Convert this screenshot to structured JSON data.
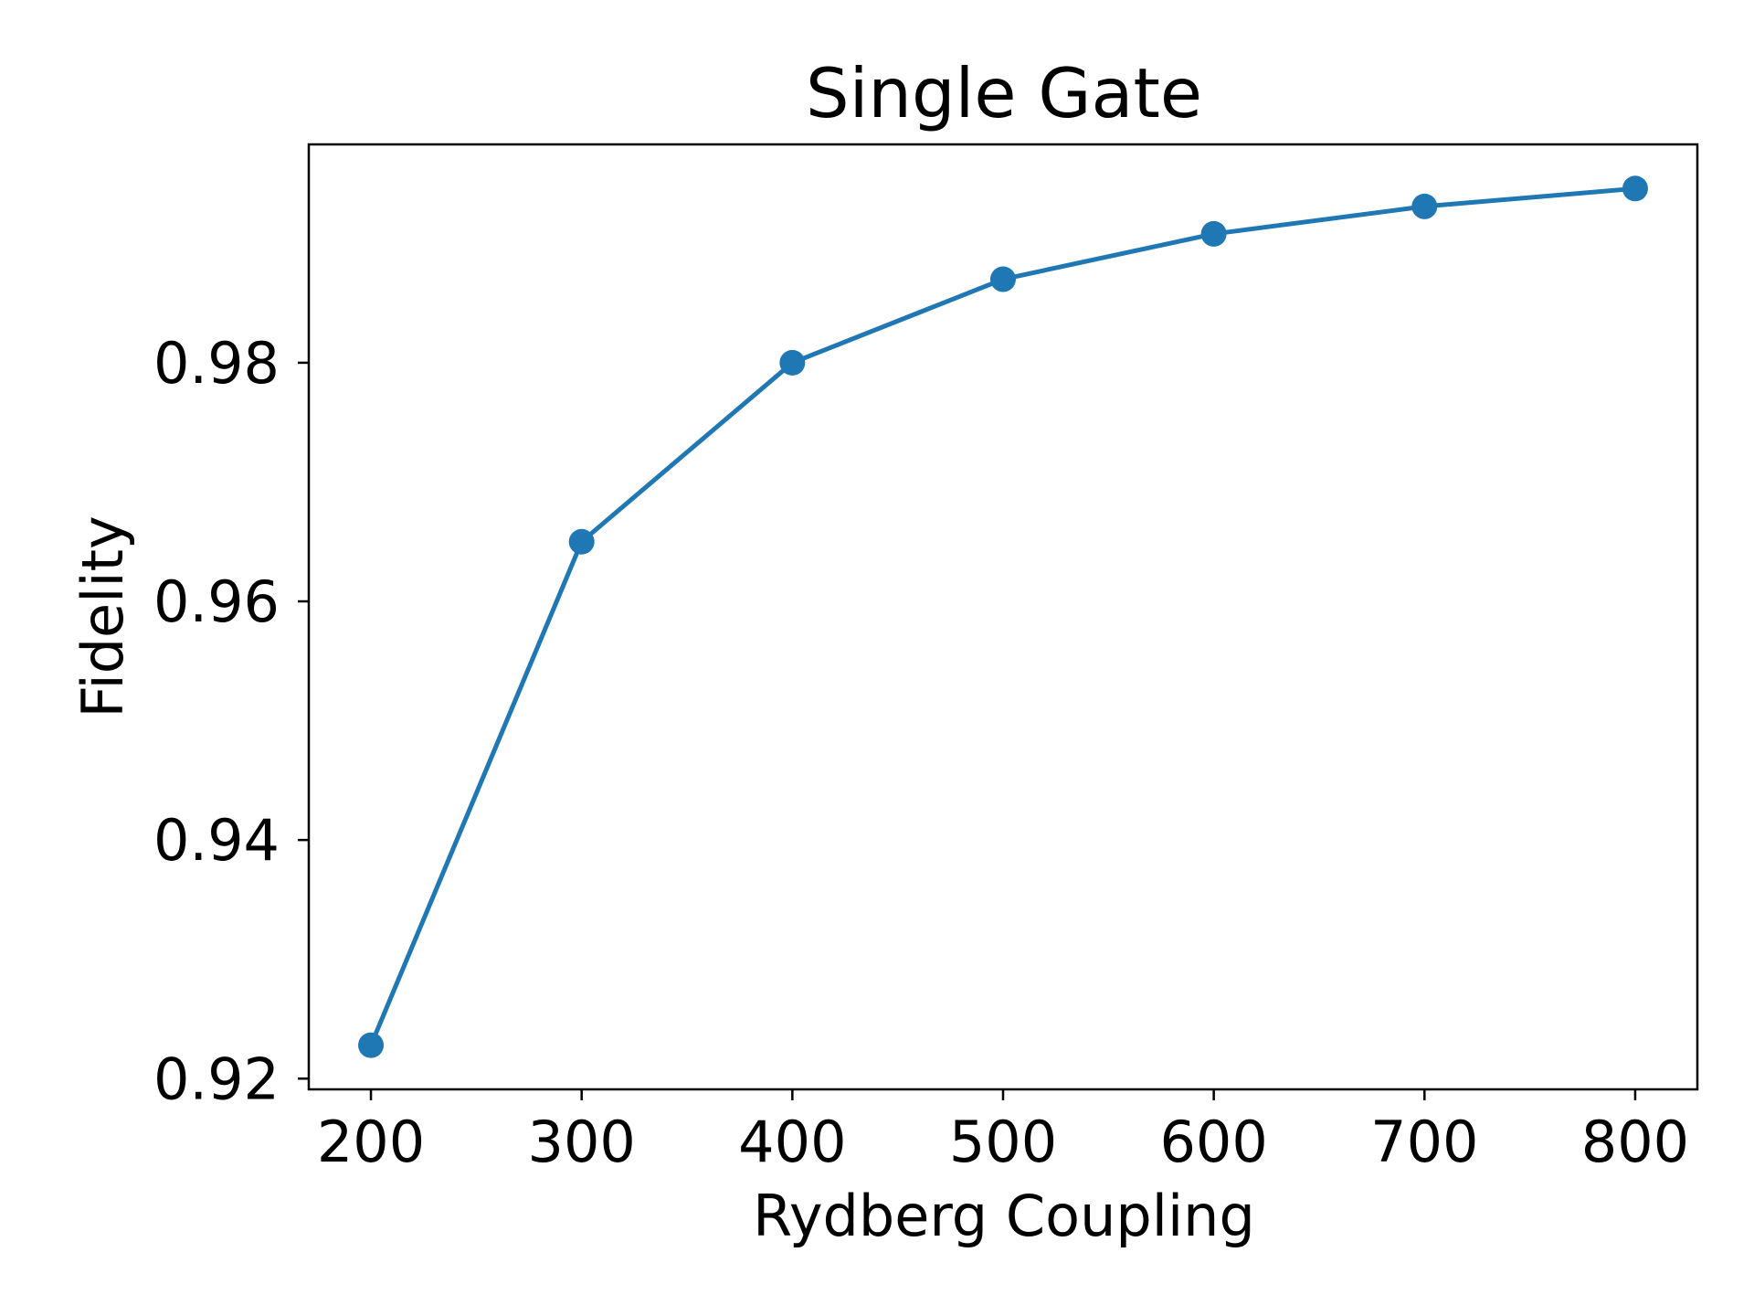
{
  "chart_data": {
    "type": "line",
    "title": "Single Gate",
    "xlabel": "Rydberg Coupling",
    "ylabel": "Fidelity",
    "x": [
      200,
      300,
      400,
      500,
      600,
      700,
      800
    ],
    "series": [
      {
        "name": "Fidelity",
        "values": [
          0.9228,
          0.965,
          0.98,
          0.987,
          0.9908,
          0.9931,
          0.9946
        ],
        "color": "#1f77b4",
        "marker": "circle"
      }
    ],
    "xlim": [
      170.5,
      829.5
    ],
    "ylim": [
      0.9191,
      0.9983
    ],
    "xticks": [
      200,
      300,
      400,
      500,
      600,
      700,
      800
    ],
    "xtick_labels": [
      "200",
      "300",
      "400",
      "500",
      "600",
      "700",
      "800"
    ],
    "yticks": [
      0.92,
      0.94,
      0.96,
      0.98
    ],
    "ytick_labels": [
      "0.92",
      "0.94",
      "0.96",
      "0.98"
    ],
    "grid": false,
    "legend": "none"
  }
}
